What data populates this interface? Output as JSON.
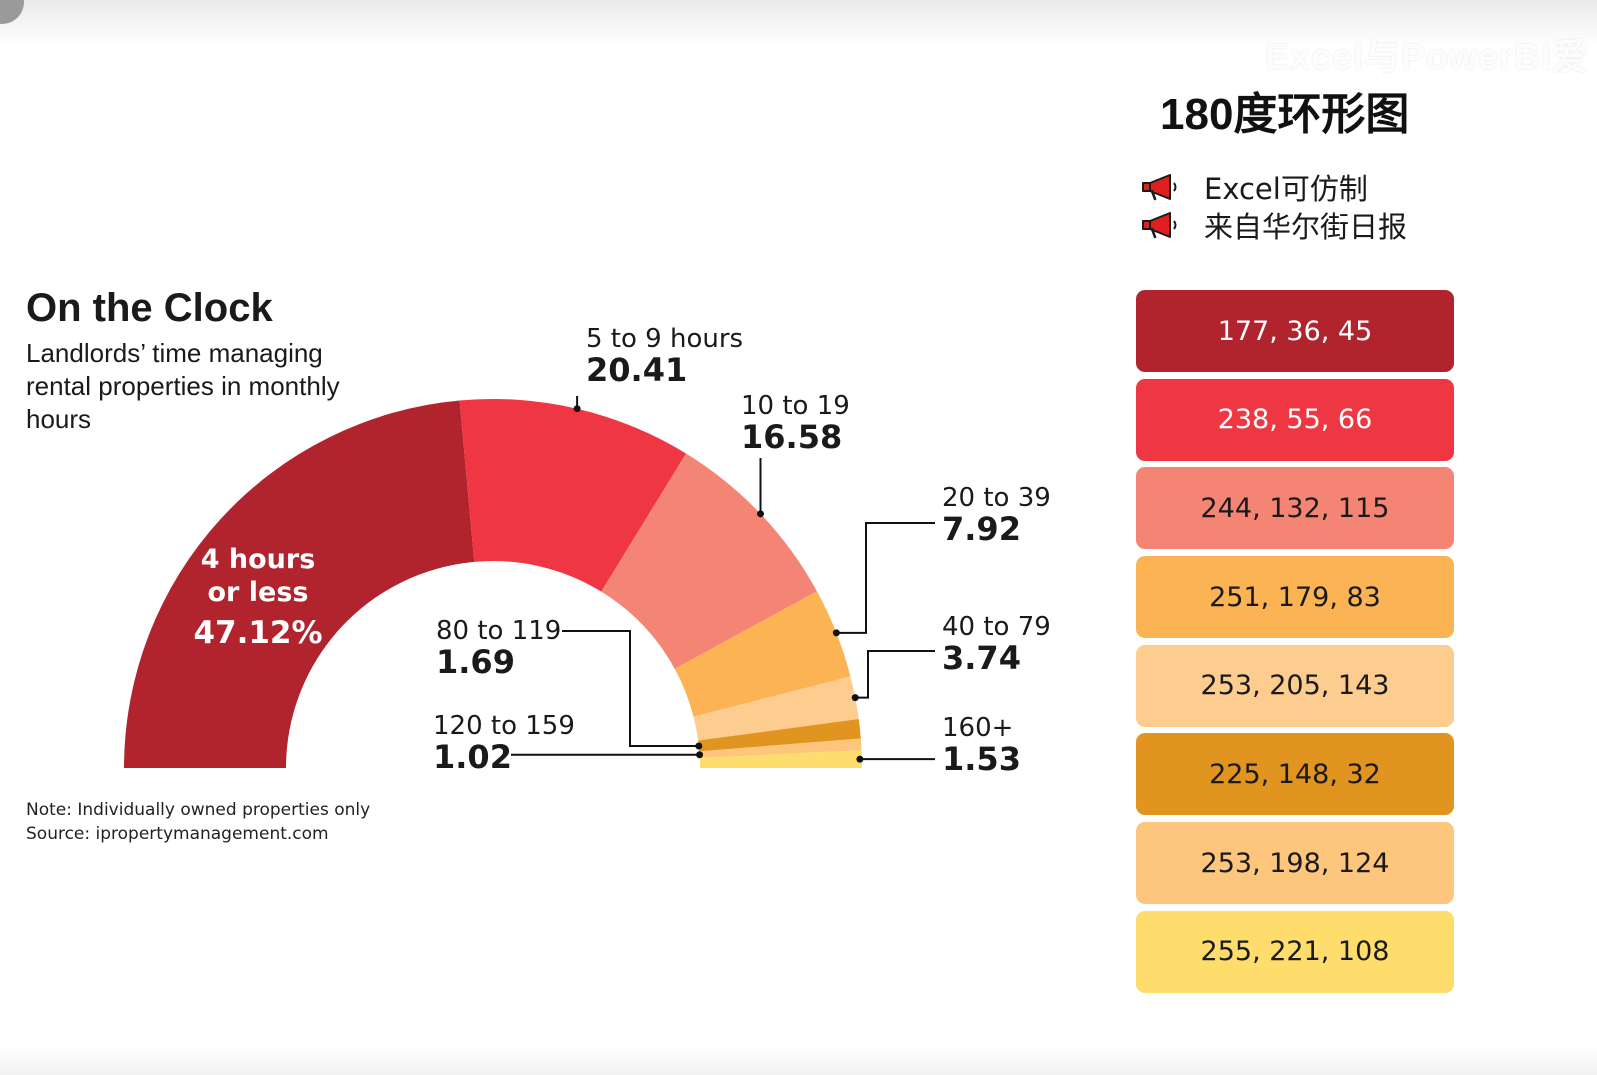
{
  "watermark": "Excel与PowerBI爱",
  "panel": {
    "title": "180度环形图",
    "bullets": [
      "Excel可仿制",
      "来自华尔街日报"
    ],
    "swatches": [
      {
        "label": "177, 36, 45",
        "color": "#b1242d",
        "text_color": "#ffffff"
      },
      {
        "label": "238, 55, 66",
        "color": "#ee3742",
        "text_color": "#ffffff"
      },
      {
        "label": "244, 132, 115",
        "color": "#f48473",
        "text_color": "#1a1a1a"
      },
      {
        "label": "251, 179, 83",
        "color": "#fbb353",
        "text_color": "#1a1a1a"
      },
      {
        "label": "253, 205, 143",
        "color": "#fdcd8f",
        "text_color": "#1a1a1a"
      },
      {
        "label": "225, 148, 32",
        "color": "#e19420",
        "text_color": "#1a1a1a"
      },
      {
        "label": "253, 198, 124",
        "color": "#fdc67c",
        "text_color": "#1a1a1a"
      },
      {
        "label": "255, 221, 108",
        "color": "#ffdd6c",
        "text_color": "#1a1a1a"
      }
    ]
  },
  "chart_data": {
    "type": "pie",
    "variant": "half-donut",
    "title": "On the Clock",
    "subtitle": "Landlords’ time managing rental properties in monthly hours",
    "note": "Note: Individually owned properties only",
    "source": "Source: ipropertymanagement.com",
    "slices": [
      {
        "label": "4 hours or less",
        "value": 47.12,
        "value_label": "47.12%",
        "color": "#b1242d"
      },
      {
        "label": "5 to 9 hours",
        "value": 20.41,
        "value_label": "20.41",
        "color": "#ee3742"
      },
      {
        "label": "10 to 19",
        "value": 16.58,
        "value_label": "16.58",
        "color": "#f48473"
      },
      {
        "label": "20 to 39",
        "value": 7.92,
        "value_label": "7.92",
        "color": "#fbb353"
      },
      {
        "label": "40 to 79",
        "value": 3.74,
        "value_label": "3.74",
        "color": "#fdcd8f"
      },
      {
        "label": "80 to 119",
        "value": 1.69,
        "value_label": "1.69",
        "color": "#e19420"
      },
      {
        "label": "120 to 159",
        "value": 1.02,
        "value_label": "1.02",
        "color": "#fdc67c"
      },
      {
        "label": "160+",
        "value": 1.53,
        "value_label": "1.53",
        "color": "#ffdd6c"
      }
    ]
  }
}
